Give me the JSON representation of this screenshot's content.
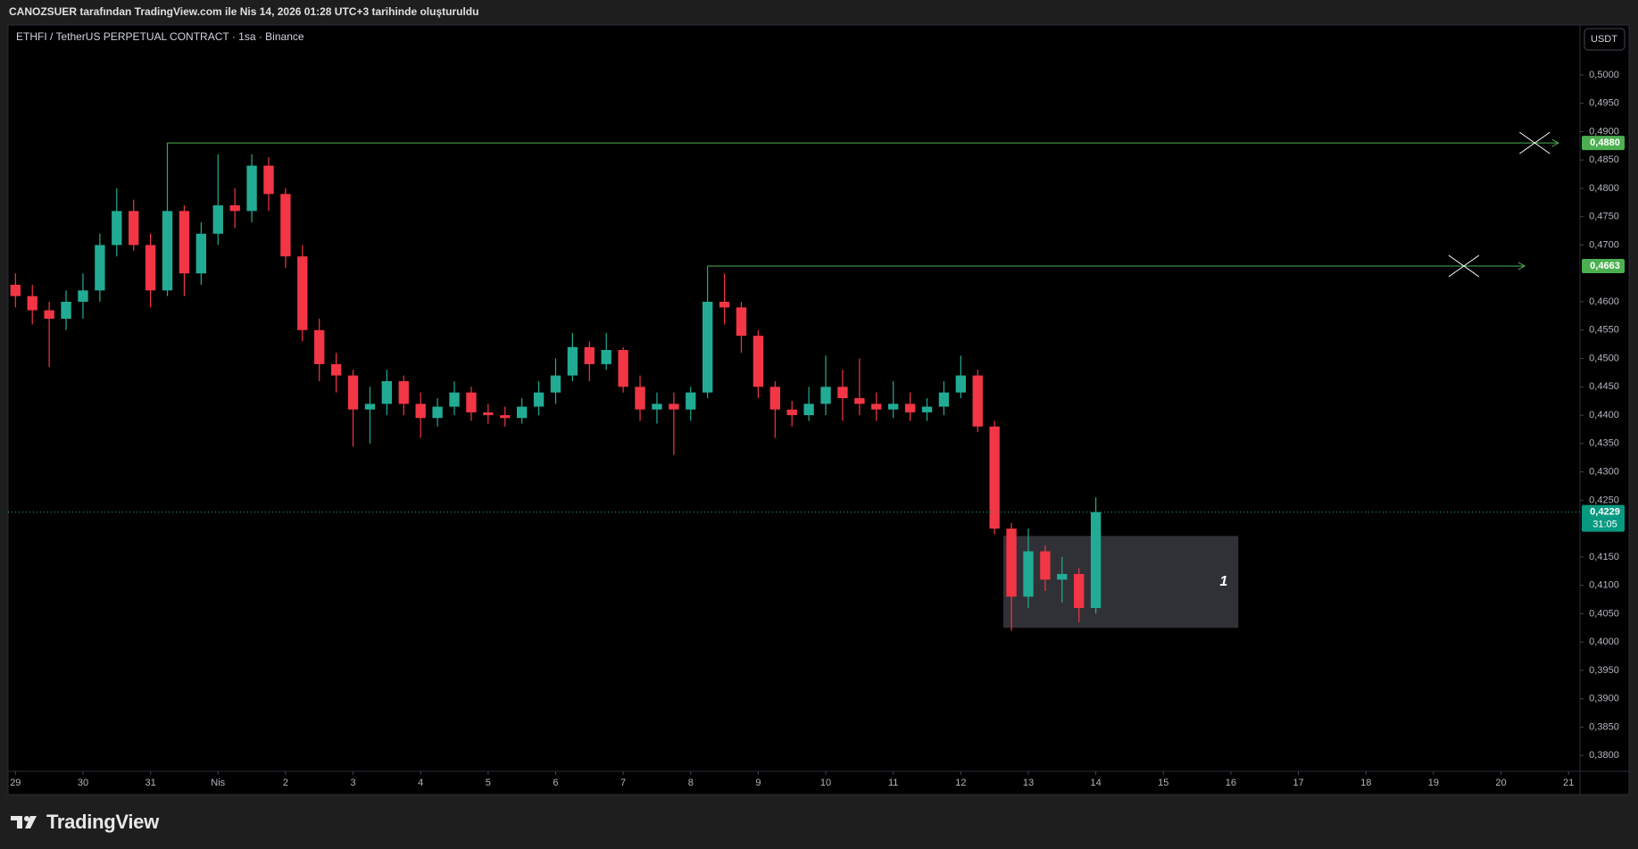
{
  "header": {
    "text": "CANOZSUER tarafından TradingView.com ile Nis 14, 2026 01:28 UTC+3 tarihinde oluşturuldu"
  },
  "footer": {
    "brand": "TradingView"
  },
  "chart_data": {
    "type": "candlestick",
    "title": "ETHFI / TetherUS PERPETUAL CONTRACT · 1sa · Binance",
    "currency": "USDT",
    "up_color": "#22ab94",
    "down_color": "#f23645",
    "xlim": [
      -0.11,
      23.17
    ],
    "xticks": [
      {
        "value": 0,
        "label": "29"
      },
      {
        "value": 1,
        "label": "30"
      },
      {
        "value": 2,
        "label": "31"
      },
      {
        "value": 3,
        "label": "Nis"
      },
      {
        "value": 4,
        "label": "2"
      },
      {
        "value": 5,
        "label": "3"
      },
      {
        "value": 6,
        "label": "4"
      },
      {
        "value": 7,
        "label": "5"
      },
      {
        "value": 8,
        "label": "6"
      },
      {
        "value": 9,
        "label": "7"
      },
      {
        "value": 10,
        "label": "8"
      },
      {
        "value": 11,
        "label": "9"
      },
      {
        "value": 12,
        "label": "10"
      },
      {
        "value": 13,
        "label": "11"
      },
      {
        "value": 14,
        "label": "12"
      },
      {
        "value": 15,
        "label": "13"
      },
      {
        "value": 16,
        "label": "14"
      },
      {
        "value": 17,
        "label": "15"
      },
      {
        "value": 18,
        "label": "16"
      },
      {
        "value": 19,
        "label": "17"
      },
      {
        "value": 20,
        "label": "18"
      },
      {
        "value": 21,
        "label": "19"
      },
      {
        "value": 22,
        "label": "20"
      },
      {
        "value": 23,
        "label": "21"
      }
    ],
    "ylim": [
      0.3772,
      0.5088
    ],
    "yticks": [
      {
        "value": 0.38,
        "label": "0,3800"
      },
      {
        "value": 0.385,
        "label": "0,3850"
      },
      {
        "value": 0.39,
        "label": "0,3900"
      },
      {
        "value": 0.395,
        "label": "0,3950"
      },
      {
        "value": 0.4,
        "label": "0,4000"
      },
      {
        "value": 0.405,
        "label": "0,4050"
      },
      {
        "value": 0.41,
        "label": "0,4100"
      },
      {
        "value": 0.415,
        "label": "0,4150"
      },
      {
        "value": 0.425,
        "label": "0,4250"
      },
      {
        "value": 0.43,
        "label": "0,4300"
      },
      {
        "value": 0.435,
        "label": "0,4350"
      },
      {
        "value": 0.44,
        "label": "0,4400"
      },
      {
        "value": 0.445,
        "label": "0,4450"
      },
      {
        "value": 0.45,
        "label": "0,4500"
      },
      {
        "value": 0.455,
        "label": "0,4550"
      },
      {
        "value": 0.46,
        "label": "0,4600"
      },
      {
        "value": 0.47,
        "label": "0,4700"
      },
      {
        "value": 0.475,
        "label": "0,4750"
      },
      {
        "value": 0.48,
        "label": "0,4800"
      },
      {
        "value": 0.485,
        "label": "0,4850"
      },
      {
        "value": 0.49,
        "label": "0,4900"
      },
      {
        "value": 0.495,
        "label": "0,4950"
      },
      {
        "value": 0.5,
        "label": "0,5000"
      }
    ],
    "x": [
      0,
      0.25,
      0.5,
      0.75,
      1,
      1.25,
      1.5,
      1.75,
      2,
      2.25,
      2.5,
      2.75,
      3,
      3.25,
      3.5,
      3.75,
      4,
      4.25,
      4.5,
      4.75,
      5,
      5.25,
      5.5,
      5.75,
      6,
      6.25,
      6.5,
      6.75,
      7,
      7.25,
      7.5,
      7.75,
      8,
      8.25,
      8.5,
      8.75,
      9,
      9.25,
      9.5,
      9.75,
      10,
      10.25,
      10.5,
      10.75,
      11,
      11.25,
      11.5,
      11.75,
      12,
      12.25,
      12.5,
      12.75,
      13,
      13.25,
      13.5,
      13.75,
      14,
      14.25,
      14.5,
      14.75,
      15,
      15.25,
      15.5,
      15.75,
      16
    ],
    "open": [
      0.463,
      0.461,
      0.4585,
      0.457,
      0.46,
      0.462,
      0.47,
      0.476,
      0.47,
      0.462,
      0.476,
      0.465,
      0.472,
      0.477,
      0.476,
      0.484,
      0.479,
      0.468,
      0.455,
      0.449,
      0.447,
      0.441,
      0.442,
      0.446,
      0.442,
      0.4395,
      0.4415,
      0.444,
      0.4405,
      0.44,
      0.4395,
      0.4415,
      0.444,
      0.447,
      0.452,
      0.449,
      0.4515,
      0.445,
      0.441,
      0.442,
      0.441,
      0.444,
      0.46,
      0.459,
      0.454,
      0.445,
      0.441,
      0.44,
      0.442,
      0.445,
      0.443,
      0.442,
      0.441,
      0.442,
      0.4405,
      0.4415,
      0.444,
      0.447,
      0.438,
      0.42,
      0.408,
      0.416,
      0.411,
      0.412,
      0.406
    ],
    "high": [
      0.465,
      0.463,
      0.46,
      0.462,
      0.465,
      0.472,
      0.48,
      0.478,
      0.472,
      0.488,
      0.477,
      0.474,
      0.486,
      0.48,
      0.486,
      0.4855,
      0.48,
      0.47,
      0.457,
      0.451,
      0.448,
      0.445,
      0.448,
      0.447,
      0.444,
      0.443,
      0.446,
      0.445,
      0.442,
      0.4415,
      0.443,
      0.446,
      0.45,
      0.4545,
      0.453,
      0.4545,
      0.452,
      0.447,
      0.444,
      0.444,
      0.445,
      0.4663,
      0.465,
      0.46,
      0.455,
      0.446,
      0.4425,
      0.445,
      0.4505,
      0.448,
      0.45,
      0.444,
      0.446,
      0.444,
      0.443,
      0.446,
      0.4505,
      0.448,
      0.439,
      0.421,
      0.42,
      0.417,
      0.415,
      0.413,
      0.4255
    ],
    "low": [
      0.459,
      0.456,
      0.4485,
      0.455,
      0.457,
      0.46,
      0.468,
      0.469,
      0.459,
      0.461,
      0.461,
      0.463,
      0.47,
      0.473,
      0.474,
      0.476,
      0.466,
      0.453,
      0.446,
      0.444,
      0.4345,
      0.435,
      0.44,
      0.44,
      0.436,
      0.438,
      0.44,
      0.439,
      0.4385,
      0.438,
      0.4385,
      0.44,
      0.442,
      0.446,
      0.446,
      0.448,
      0.444,
      0.439,
      0.4385,
      0.433,
      0.439,
      0.443,
      0.456,
      0.451,
      0.443,
      0.436,
      0.438,
      0.439,
      0.44,
      0.439,
      0.44,
      0.439,
      0.4395,
      0.439,
      0.439,
      0.44,
      0.443,
      0.437,
      0.419,
      0.402,
      0.406,
      0.409,
      0.407,
      0.4035,
      0.405
    ],
    "close": [
      0.461,
      0.4585,
      0.457,
      0.46,
      0.462,
      0.47,
      0.476,
      0.47,
      0.462,
      0.476,
      0.465,
      0.472,
      0.477,
      0.476,
      0.484,
      0.479,
      0.468,
      0.455,
      0.449,
      0.447,
      0.441,
      0.442,
      0.446,
      0.442,
      0.4395,
      0.4415,
      0.444,
      0.4405,
      0.44,
      0.4395,
      0.4415,
      0.444,
      0.447,
      0.452,
      0.449,
      0.4515,
      0.445,
      0.441,
      0.442,
      0.441,
      0.444,
      0.46,
      0.459,
      0.454,
      0.445,
      0.441,
      0.44,
      0.442,
      0.445,
      0.443,
      0.442,
      0.441,
      0.442,
      0.4405,
      0.4415,
      0.444,
      0.447,
      0.438,
      0.42,
      0.408,
      0.416,
      0.411,
      0.412,
      0.406,
      0.4229
    ],
    "last": {
      "value": 0.4229,
      "label": "0,4229",
      "countdown": "31:05"
    },
    "levels": [
      {
        "value": 0.488,
        "label": "0,4880",
        "x": [
          2.25,
          22.85
        ],
        "cross": 22.5
      },
      {
        "value": 0.4663,
        "label": "0,4663",
        "x": [
          10.25,
          22.35
        ],
        "cross": 21.45
      }
    ],
    "box": {
      "x": [
        14.63,
        18.11
      ],
      "y": [
        0.4025,
        0.4187
      ],
      "label": "1"
    }
  }
}
